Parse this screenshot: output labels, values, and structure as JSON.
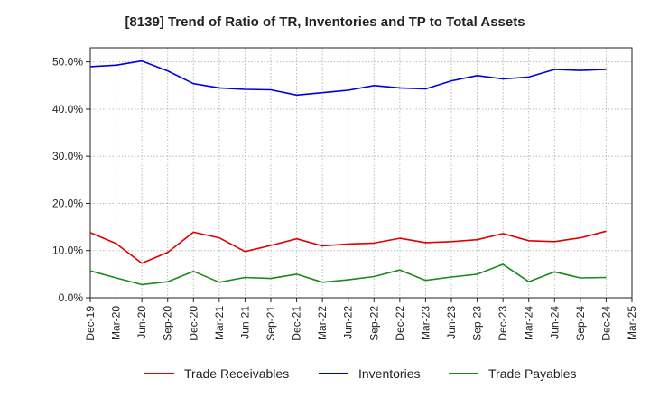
{
  "chart_data": {
    "type": "line",
    "title": "[8139]  Trend of Ratio of TR, Inventories and TP to Total Assets",
    "xlabel": "",
    "ylabel": "",
    "x": [
      "Dec-19",
      "Mar-20",
      "Jun-20",
      "Sep-20",
      "Dec-20",
      "Mar-21",
      "Jun-21",
      "Sep-21",
      "Dec-21",
      "Mar-22",
      "Jun-22",
      "Sep-22",
      "Dec-22",
      "Mar-23",
      "Jun-23",
      "Sep-23",
      "Dec-23",
      "Mar-24",
      "Jun-24",
      "Sep-24",
      "Dec-24"
    ],
    "x_ticks": [
      "Dec-19",
      "Mar-20",
      "Jun-20",
      "Sep-20",
      "Dec-20",
      "Mar-21",
      "Jun-21",
      "Sep-21",
      "Dec-21",
      "Mar-22",
      "Jun-22",
      "Sep-22",
      "Dec-22",
      "Mar-23",
      "Jun-23",
      "Sep-23",
      "Dec-23",
      "Mar-24",
      "Jun-24",
      "Sep-24",
      "Dec-24",
      "Mar-25"
    ],
    "y_ticks": [
      "0.0%",
      "10.0%",
      "20.0%",
      "30.0%",
      "40.0%",
      "50.0%"
    ],
    "ylim": [
      0,
      53
    ],
    "grid": true,
    "legend_position": "bottom",
    "series": [
      {
        "name": "Trade Receivables",
        "color": "#e00000",
        "values": [
          13.8,
          11.5,
          7.3,
          9.6,
          13.9,
          12.7,
          9.8,
          11.1,
          12.5,
          11.0,
          11.4,
          11.6,
          12.6,
          11.7,
          11.9,
          12.3,
          13.6,
          12.1,
          11.9,
          12.7,
          14.1
        ]
      },
      {
        "name": "Inventories",
        "color": "#0000dd",
        "values": [
          49.0,
          49.3,
          50.2,
          48.1,
          45.4,
          44.5,
          44.2,
          44.1,
          43.0,
          43.5,
          44.0,
          45.0,
          44.5,
          44.3,
          46.0,
          47.1,
          46.4,
          46.8,
          48.4,
          48.2,
          48.4
        ]
      },
      {
        "name": "Trade Payables",
        "color": "#1a8a1a",
        "values": [
          5.7,
          4.2,
          2.8,
          3.4,
          5.6,
          3.3,
          4.3,
          4.1,
          5.0,
          3.3,
          3.8,
          4.5,
          5.9,
          3.7,
          4.4,
          5.0,
          7.1,
          3.4,
          5.5,
          4.2,
          4.3
        ]
      }
    ]
  }
}
